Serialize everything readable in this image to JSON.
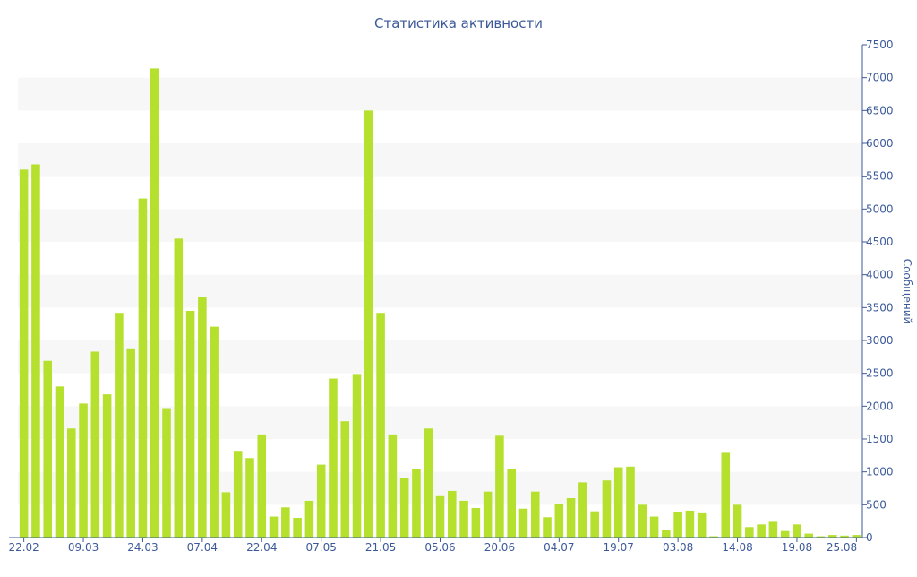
{
  "chart_data": {
    "type": "bar",
    "title": "Статистика активности",
    "xlabel": "",
    "ylabel": "Сообщений",
    "ylim": [
      0,
      7500
    ],
    "yticks": [
      0,
      500,
      1000,
      1500,
      2000,
      2500,
      3000,
      3500,
      4000,
      4500,
      5000,
      5500,
      6000,
      6500,
      7000,
      7500
    ],
    "y_axis_side": "right",
    "grid": "alternating-horizontal-bands",
    "legend": "none",
    "x_tick_labels": [
      "22.02",
      "09.03",
      "24.03",
      "07.04",
      "22.04",
      "07.05",
      "21.05",
      "05.06",
      "20.06",
      "04.07",
      "19.07",
      "03.08",
      "14.08",
      "19.08",
      "25.08"
    ],
    "x_tick_indices": [
      0,
      5,
      10,
      15,
      20,
      25,
      30,
      35,
      40,
      45,
      50,
      55,
      60,
      65,
      70
    ],
    "values": [
      5600,
      5680,
      2690,
      2300,
      1660,
      2040,
      2830,
      2180,
      3420,
      2880,
      5160,
      7140,
      1970,
      4550,
      3450,
      3660,
      3210,
      690,
      1320,
      1210,
      1570,
      320,
      460,
      300,
      560,
      1110,
      2420,
      1770,
      2490,
      6500,
      3420,
      1570,
      900,
      1040,
      1660,
      630,
      710,
      560,
      450,
      700,
      1550,
      1040,
      440,
      700,
      310,
      510,
      600,
      840,
      400,
      870,
      1070,
      1080,
      500,
      320,
      110,
      390,
      410,
      370,
      20,
      1290,
      500,
      160,
      200,
      240,
      100,
      200,
      60,
      20,
      40,
      30,
      40
    ],
    "colors": {
      "bar": "#b5e02e",
      "axis": "#3c5a99",
      "title": "#3c5a99",
      "band": "#f7f7f7"
    }
  }
}
